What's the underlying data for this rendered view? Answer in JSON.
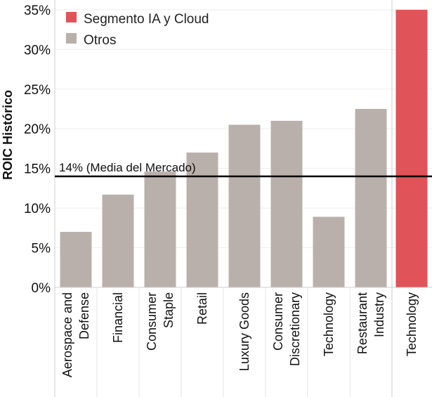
{
  "chart_data": {
    "type": "bar",
    "ylabel": "ROIC Histórico",
    "ylim": [
      0,
      35
    ],
    "yticks": [
      "0%",
      "5%",
      "10%",
      "15%",
      "20%",
      "25%",
      "30%",
      "35%"
    ],
    "grid": true,
    "legend_position": "top-left",
    "legend": [
      {
        "name": "Segmento IA y Cloud",
        "color": "#e05358"
      },
      {
        "name": "Otros",
        "color": "#bab0ab"
      }
    ],
    "groups": [
      {
        "series": "Otros",
        "color": "#bab0ab",
        "categories": [
          [
            "Aerospace and",
            "Defense"
          ],
          [
            "Financial"
          ],
          [
            "Consumer",
            "Staple"
          ],
          [
            "Retail"
          ],
          [
            "Luxury Goods"
          ],
          [
            "Consumer",
            "Discretionary"
          ],
          [
            "Technology"
          ],
          [
            "Restaurant",
            "Industry"
          ]
        ],
        "values": [
          7,
          11.7,
          14.6,
          17,
          20.5,
          21,
          8.9,
          22.5
        ]
      },
      {
        "series": "Segmento IA y Cloud",
        "color": "#e05358",
        "categories": [
          [
            "Technology"
          ]
        ],
        "values": [
          35
        ]
      }
    ],
    "reference_line": {
      "value": 14,
      "label": "14% (Media del Mercado)"
    }
  }
}
